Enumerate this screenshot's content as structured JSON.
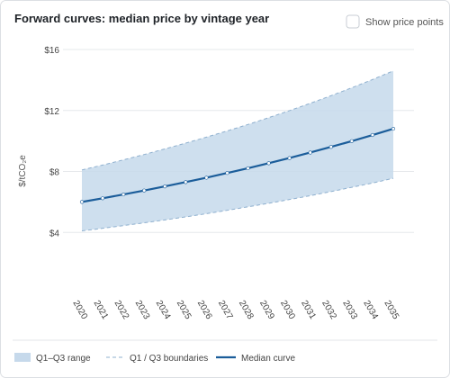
{
  "chart_data": {
    "type": "line",
    "title": "Forward curves: median price by vintage year",
    "control_label": "Show price points",
    "y_label": "$/tCO₂e",
    "categories": [
      "2020",
      "2021",
      "2022",
      "2023",
      "2024",
      "2025",
      "2026",
      "2027",
      "2028",
      "2029",
      "2030",
      "2031",
      "2032",
      "2033",
      "2034",
      "2035"
    ],
    "ylim": [
      0,
      16
    ],
    "yticks": [
      {
        "value": 4,
        "label": "$4"
      },
      {
        "value": 8,
        "label": "$8"
      },
      {
        "value": 12,
        "label": "$12"
      },
      {
        "value": 16,
        "label": "$16"
      }
    ],
    "grid": true,
    "band": {
      "name": "Q1–Q3 range",
      "color": "#c6d9eb",
      "lower": [
        4.1,
        4.27,
        4.45,
        4.63,
        4.82,
        5.02,
        5.23,
        5.45,
        5.68,
        5.91,
        6.16,
        6.41,
        6.68,
        6.96,
        7.24,
        7.55
      ],
      "upper": [
        8.1,
        8.42,
        8.76,
        9.11,
        9.48,
        9.86,
        10.25,
        10.66,
        11.08,
        11.53,
        11.99,
        12.47,
        12.97,
        13.49,
        14.03,
        14.6
      ]
    },
    "boundary": {
      "name": "Q1 / Q3 boundaries",
      "color": "#8fb0cf"
    },
    "series": [
      {
        "name": "Median curve",
        "color": "#1b5d9a",
        "values": [
          6.0,
          6.24,
          6.49,
          6.75,
          7.02,
          7.3,
          7.59,
          7.9,
          8.21,
          8.54,
          8.88,
          9.24,
          9.61,
          9.99,
          10.39,
          10.8
        ]
      }
    ]
  }
}
